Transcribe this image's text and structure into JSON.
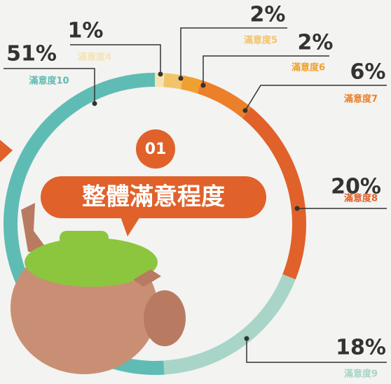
{
  "chart_data": {
    "type": "donut",
    "badge": "01",
    "title": "整體滿意程度",
    "categories": [
      "滿意度4",
      "滿意度5",
      "滿意度6",
      "滿意度7",
      "滿意度8",
      "滿意度9",
      "滿意度10"
    ],
    "values": [
      1,
      2,
      2,
      6,
      20,
      18,
      51
    ],
    "value_labels": [
      "1%",
      "2%",
      "2%",
      "6%",
      "20%",
      "18%",
      "51%"
    ],
    "colors": [
      "#f6e3b4",
      "#f2c46a",
      "#f0a030",
      "#ec7f2a",
      "#e0612a",
      "#a8d5c8",
      "#5fbcb4"
    ]
  }
}
